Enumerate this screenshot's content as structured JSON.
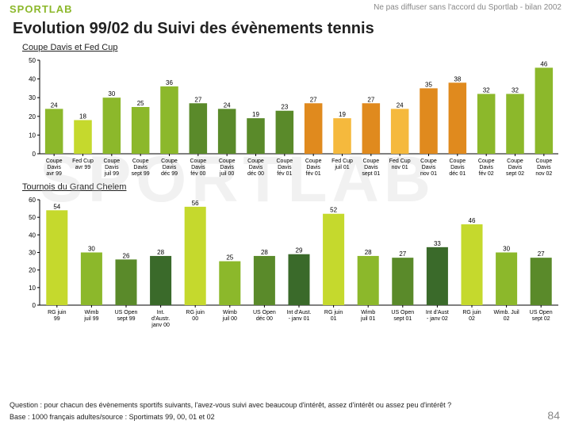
{
  "header": {
    "logo_text": "SPORTLAB",
    "disclaimer": "Ne pas diffuser sans l'accord du Sportlab - bilan 2002"
  },
  "title": "Evolution 99/02 du Suivi des évènements tennis",
  "watermark": "SPORTLAB",
  "chart1": {
    "subtitle": "Coupe Davis et Fed Cup",
    "type": "bar",
    "ylim": [
      0,
      50
    ],
    "ytick_step": 10,
    "yticks": [
      0,
      10,
      20,
      30,
      40,
      50
    ],
    "background": "#ffffff",
    "axis_color": "#000000",
    "bars": [
      {
        "label_l1": "Coupe",
        "label_l2": "Davis",
        "label_l3": "avr 99",
        "value": 24,
        "color": "#8cb82b"
      },
      {
        "label_l1": "Fed Cup",
        "label_l2": "avr 99",
        "label_l3": "",
        "value": 18,
        "color": "#c5d92d"
      },
      {
        "label_l1": "Coupe",
        "label_l2": "Davis",
        "label_l3": "juil 99",
        "value": 30,
        "color": "#8cb82b"
      },
      {
        "label_l1": "Coupe",
        "label_l2": "Davis",
        "label_l3": "sept 99",
        "value": 25,
        "color": "#8cb82b"
      },
      {
        "label_l1": "Coupe",
        "label_l2": "Davis",
        "label_l3": "déc 99",
        "value": 36,
        "color": "#8cb82b"
      },
      {
        "label_l1": "Coupe",
        "label_l2": "Davis",
        "label_l3": "fév 00",
        "value": 27,
        "color": "#5a8a2a"
      },
      {
        "label_l1": "Coupe",
        "label_l2": "Davis",
        "label_l3": "juil 00",
        "value": 24,
        "color": "#5a8a2a"
      },
      {
        "label_l1": "Coupe",
        "label_l2": "Davis",
        "label_l3": "déc 00",
        "value": 19,
        "color": "#5a8a2a"
      },
      {
        "label_l1": "Coupe",
        "label_l2": "Davis",
        "label_l3": "fév 01",
        "value": 23,
        "color": "#5a8a2a"
      },
      {
        "label_l1": "Coupe",
        "label_l2": "Davis",
        "label_l3": "fév 01",
        "value": 27,
        "color": "#e08a1e"
      },
      {
        "label_l1": "Fed Cup",
        "label_l2": "juil 01",
        "label_l3": "",
        "value": 19,
        "color": "#f5b93d"
      },
      {
        "label_l1": "Coupe",
        "label_l2": "Davis",
        "label_l3": "sept 01",
        "value": 27,
        "color": "#e08a1e"
      },
      {
        "label_l1": "Fed Cup",
        "label_l2": "nov 01",
        "label_l3": "",
        "value": 24,
        "color": "#f5b93d"
      },
      {
        "label_l1": "Coupe",
        "label_l2": "Davis",
        "label_l3": "nov 01",
        "value": 35,
        "color": "#e08a1e"
      },
      {
        "label_l1": "Coupe",
        "label_l2": "Davis",
        "label_l3": "déc 01",
        "value": 38,
        "color": "#e08a1e"
      },
      {
        "label_l1": "Coupe",
        "label_l2": "Davis",
        "label_l3": "fév 02",
        "value": 32,
        "color": "#8cb82b"
      },
      {
        "label_l1": "Coupe",
        "label_l2": "Davis",
        "label_l3": "sept 02",
        "value": 32,
        "color": "#8cb82b"
      },
      {
        "label_l1": "Coupe",
        "label_l2": "Davis",
        "label_l3": "nov 02",
        "value": 46,
        "color": "#8cb82b"
      }
    ]
  },
  "chart2": {
    "subtitle": "Tournois du Grand Chelem",
    "type": "bar",
    "ylim": [
      0,
      60
    ],
    "ytick_step": 10,
    "yticks": [
      0,
      10,
      20,
      30,
      40,
      50,
      60
    ],
    "background": "#ffffff",
    "axis_color": "#000000",
    "bars": [
      {
        "label_l1": "RG juin",
        "label_l2": "99",
        "label_l3": "",
        "value": 54,
        "color": "#c5d92d"
      },
      {
        "label_l1": "Wimb",
        "label_l2": "juil 99",
        "label_l3": "",
        "value": 30,
        "color": "#8cb82b"
      },
      {
        "label_l1": "US Open",
        "label_l2": "sept 99",
        "label_l3": "",
        "value": 26,
        "color": "#5a8a2a"
      },
      {
        "label_l1": "Int.",
        "label_l2": "d'Austr.",
        "label_l3": "janv 00",
        "value": 28,
        "color": "#3a6a2a"
      },
      {
        "label_l1": "RG juin",
        "label_l2": "00",
        "label_l3": "",
        "value": 56,
        "color": "#c5d92d"
      },
      {
        "label_l1": "Wimb",
        "label_l2": "juil 00",
        "label_l3": "",
        "value": 25,
        "color": "#8cb82b"
      },
      {
        "label_l1": "US Open",
        "label_l2": "déc 00",
        "label_l3": "",
        "value": 28,
        "color": "#5a8a2a"
      },
      {
        "label_l1": "Int d'Aust.",
        "label_l2": "- janv 01",
        "label_l3": "",
        "value": 29,
        "color": "#3a6a2a"
      },
      {
        "label_l1": "RG juin",
        "label_l2": "01",
        "label_l3": "",
        "value": 52,
        "color": "#c5d92d"
      },
      {
        "label_l1": "Wimb",
        "label_l2": "juil 01",
        "label_l3": "",
        "value": 28,
        "color": "#8cb82b"
      },
      {
        "label_l1": "US Open",
        "label_l2": "sept 01",
        "label_l3": "",
        "value": 27,
        "color": "#5a8a2a"
      },
      {
        "label_l1": "Int d'Aust",
        "label_l2": "- janv 02",
        "label_l3": "",
        "value": 33,
        "color": "#3a6a2a"
      },
      {
        "label_l1": "RG juin",
        "label_l2": "02",
        "label_l3": "",
        "value": 46,
        "color": "#c5d92d"
      },
      {
        "label_l1": "Wimb. Juil",
        "label_l2": "02",
        "label_l3": "",
        "value": 30,
        "color": "#8cb82b"
      },
      {
        "label_l1": "US Open",
        "label_l2": "sept 02",
        "label_l3": "",
        "value": 27,
        "color": "#5a8a2a"
      }
    ]
  },
  "footer": {
    "question": "Question : pour chacun des évènements sportifs suivants, l'avez-vous suivi avec beaucoup d'intérêt, assez d'intérêt ou assez peu d'intérêt ?",
    "base": "Base : 1000 français adultes/source : Sportimats 99, 00, 01 et 02",
    "page": "84"
  }
}
